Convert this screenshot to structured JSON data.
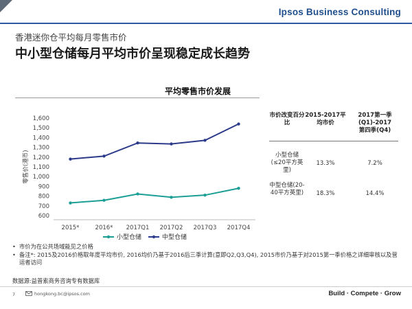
{
  "header": {
    "brand": "Ipsos Business Consulting",
    "subtitle": "香港迷你仓平均每月零售市价",
    "title": "中小型仓储每月平均市价呈现稳定成长趋势"
  },
  "chart_data": {
    "type": "line",
    "title": "平均零售市价发展",
    "ylabel": "零售价(港币)",
    "categories": [
      "2015*",
      "2016*",
      "2017Q1",
      "2017Q2",
      "2017Q3",
      "2017Q4"
    ],
    "ylim": [
      600,
      1600
    ],
    "yticks": [
      600,
      700,
      800,
      900,
      1000,
      1100,
      1200,
      1300,
      1400,
      1500,
      1600
    ],
    "ytick_labels": [
      "600",
      "700",
      "800",
      "900",
      "1,000",
      "1,100",
      "1,200",
      "1,300",
      "1,400",
      "1,500",
      "1,600"
    ],
    "grid": false,
    "legend_position": "bottom",
    "series": [
      {
        "name": "小型仓储",
        "color": "#1a9e95",
        "values": [
          730,
          757,
          822,
          788,
          810,
          880
        ]
      },
      {
        "name": "中型仓储",
        "color": "#2b3a8a",
        "values": [
          1180,
          1210,
          1345,
          1335,
          1372,
          1540
        ]
      }
    ]
  },
  "table": {
    "headers": [
      "市价改变百分比",
      "2015-2017平均市价",
      "2017第一季(Q1)-2017第四季(Q4)"
    ],
    "rows": [
      {
        "label": "小型仓储(≤20平方英里)",
        "avg": "13.3%",
        "q": "7.2%"
      },
      {
        "label": "中型仓储(20-40平方英里)",
        "avg": "18.3%",
        "q": "14.4%"
      }
    ]
  },
  "notes": {
    "bullet": "•",
    "items": [
      "市价为在公共场域能见之价格",
      "备注*: 2015及2016价格取年度平均市价, 2016均价乃基于2016后三季计算(意即Q2,Q3,Q4), 2015市价乃基于对2015第一季价格之详细审核以及营运者访问"
    ],
    "source": "数据源:益普索商务咨询专有数据库"
  },
  "footer": {
    "page": "7",
    "email": "hongkong.bc@ipsos.com",
    "tagline": "Build · Compete · Grow"
  }
}
